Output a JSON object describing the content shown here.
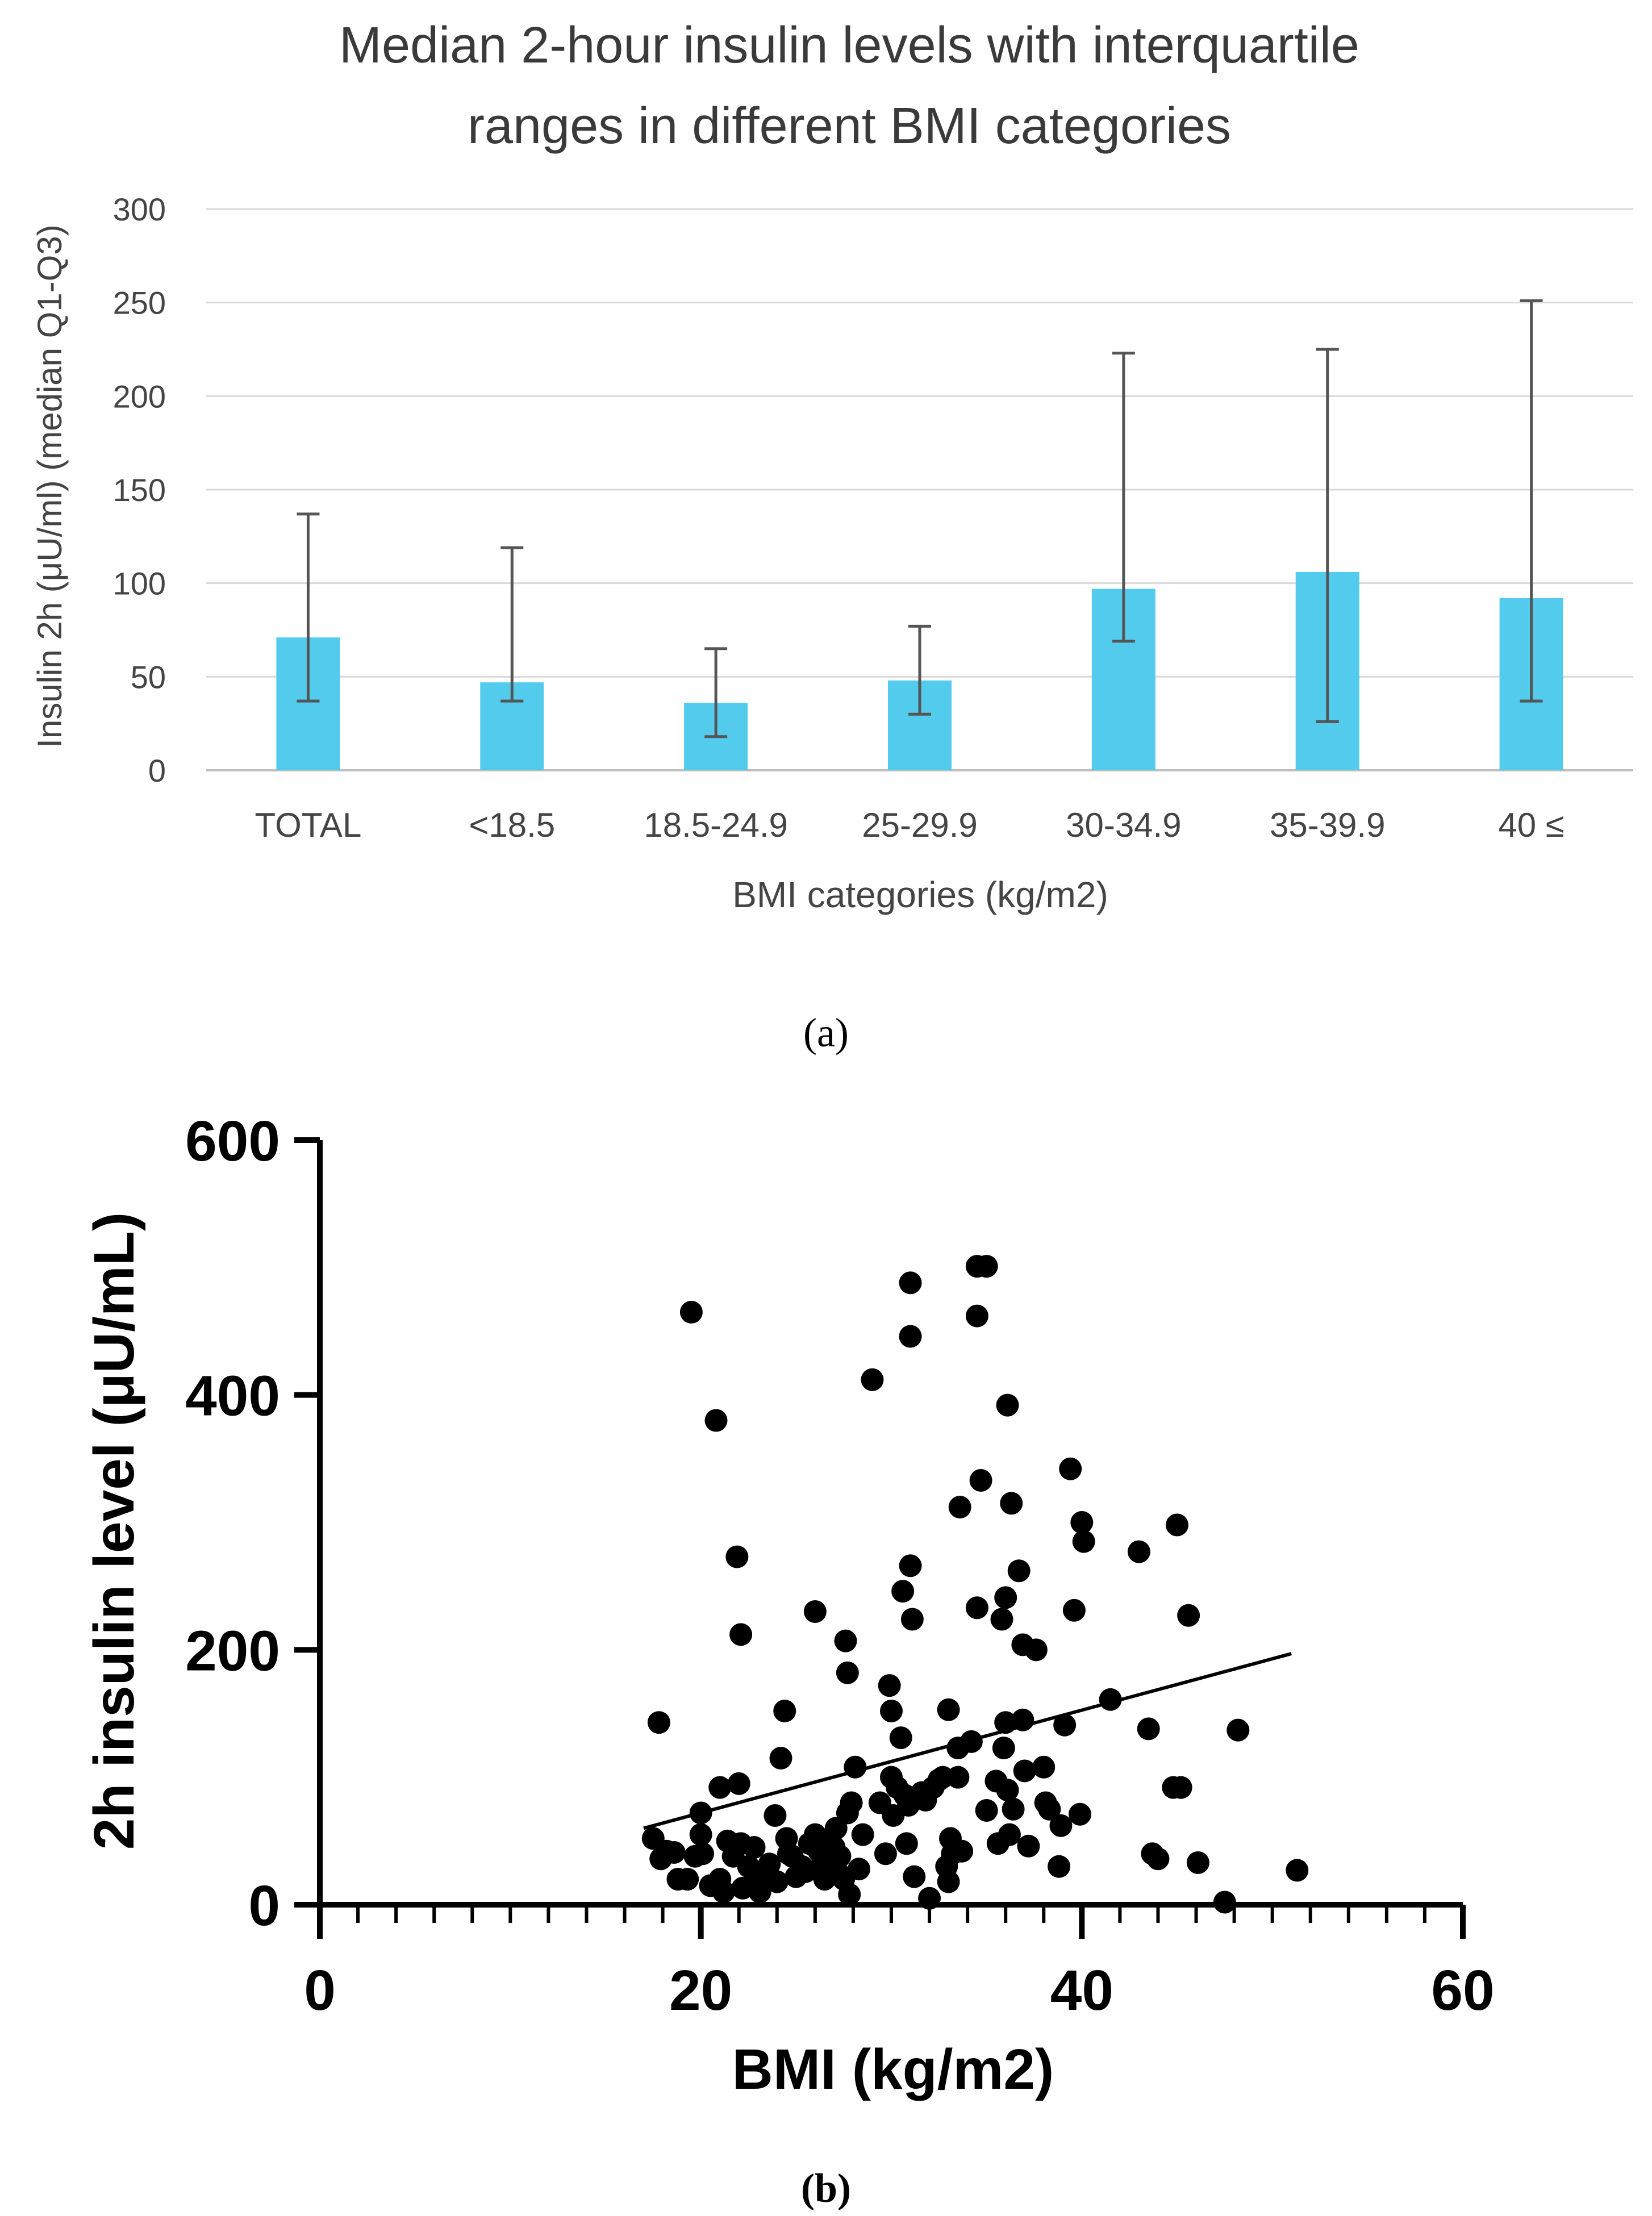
{
  "chart_data": [
    {
      "type": "bar",
      "panel_label": "(a)",
      "title_lines": [
        "Median 2-hour insulin levels with interquartile",
        "ranges in different BMI categories"
      ],
      "xlabel": "BMI categories (kg/m2)",
      "ylabel": "Insulin 2h (μU/ml) (median Q1-Q3)",
      "ylim": [
        0,
        300
      ],
      "yticks": [
        0,
        50,
        100,
        150,
        200,
        250,
        300
      ],
      "grid": true,
      "categories": [
        "TOTAL",
        "<18.5",
        "18.5-24.9",
        "25-29.9",
        "30-34.9",
        "35-39.9",
        "40 ≤"
      ],
      "values": [
        71,
        47,
        36,
        48,
        97,
        106,
        92
      ],
      "q1": [
        37,
        37,
        18,
        30,
        69,
        26,
        37
      ],
      "q3": [
        137,
        119,
        65,
        77,
        223,
        225,
        251
      ],
      "bar_color": "#52CBEC",
      "error_color": "#555555"
    },
    {
      "type": "scatter",
      "panel_label": "(b)",
      "xlabel": "BMI (kg/m2)",
      "ylabel": "2h insulin level (μU/mL)",
      "xlim": [
        0,
        60
      ],
      "ylim": [
        0,
        600
      ],
      "xticks": [
        0,
        20,
        40,
        60
      ],
      "yticks": [
        0,
        200,
        400,
        600
      ],
      "trendline": {
        "x": [
          17,
          51
        ],
        "y": [
          60,
          197
        ]
      },
      "points": [
        [
          17.5,
          52
        ],
        [
          17.8,
          143
        ],
        [
          17.9,
          36
        ],
        [
          18.2,
          42
        ],
        [
          18.6,
          41
        ],
        [
          18.8,
          20
        ],
        [
          19.3,
          20
        ],
        [
          19.5,
          465
        ],
        [
          19.7,
          38
        ],
        [
          20.0,
          72
        ],
        [
          20.0,
          55
        ],
        [
          20.1,
          40
        ],
        [
          20.5,
          15
        ],
        [
          20.8,
          380
        ],
        [
          21.0,
          92
        ],
        [
          21.0,
          20
        ],
        [
          21.2,
          10
        ],
        [
          21.4,
          50
        ],
        [
          21.7,
          38
        ],
        [
          21.9,
          273
        ],
        [
          22.0,
          95
        ],
        [
          22.1,
          212
        ],
        [
          22.1,
          48
        ],
        [
          22.2,
          13
        ],
        [
          22.5,
          30
        ],
        [
          22.8,
          45
        ],
        [
          23.0,
          20
        ],
        [
          23.1,
          10
        ],
        [
          23.4,
          25
        ],
        [
          23.6,
          32
        ],
        [
          23.9,
          70
        ],
        [
          24.0,
          18
        ],
        [
          24.2,
          115
        ],
        [
          24.4,
          152
        ],
        [
          24.5,
          52
        ],
        [
          24.6,
          40
        ],
        [
          24.8,
          38
        ],
        [
          25.0,
          22
        ],
        [
          25.3,
          30
        ],
        [
          25.5,
          26
        ],
        [
          25.7,
          48
        ],
        [
          26.0,
          230
        ],
        [
          26.0,
          55
        ],
        [
          26.2,
          42
        ],
        [
          26.4,
          33
        ],
        [
          26.5,
          20
        ],
        [
          26.8,
          52
        ],
        [
          27.0,
          45
        ],
        [
          27.1,
          60
        ],
        [
          27.2,
          25
        ],
        [
          27.3,
          38
        ],
        [
          27.5,
          20
        ],
        [
          27.6,
          207
        ],
        [
          27.7,
          182
        ],
        [
          27.7,
          72
        ],
        [
          27.8,
          8
        ],
        [
          27.9,
          80
        ],
        [
          28.1,
          108
        ],
        [
          28.3,
          28
        ],
        [
          28.5,
          55
        ],
        [
          29.0,
          412
        ],
        [
          29.4,
          80
        ],
        [
          29.7,
          40
        ],
        [
          29.9,
          172
        ],
        [
          30.0,
          152
        ],
        [
          30.0,
          100
        ],
        [
          30.1,
          70
        ],
        [
          30.3,
          92
        ],
        [
          30.5,
          131
        ],
        [
          30.6,
          246
        ],
        [
          30.7,
          86
        ],
        [
          30.8,
          48
        ],
        [
          30.9,
          78
        ],
        [
          31.0,
          266
        ],
        [
          31.0,
          488
        ],
        [
          31.0,
          446
        ],
        [
          31.1,
          224
        ],
        [
          31.2,
          22
        ],
        [
          31.6,
          88
        ],
        [
          31.8,
          82
        ],
        [
          32.0,
          5
        ],
        [
          32.2,
          92
        ],
        [
          32.5,
          98
        ],
        [
          32.7,
          100
        ],
        [
          32.9,
          30
        ],
        [
          33.0,
          153
        ],
        [
          33.0,
          18
        ],
        [
          33.1,
          52
        ],
        [
          33.2,
          40
        ],
        [
          33.5,
          100
        ],
        [
          33.5,
          123
        ],
        [
          33.6,
          312
        ],
        [
          33.7,
          42
        ],
        [
          34.2,
          128
        ],
        [
          34.5,
          501
        ],
        [
          34.5,
          462
        ],
        [
          34.5,
          233
        ],
        [
          34.7,
          333
        ],
        [
          35.0,
          501
        ],
        [
          35.0,
          74
        ],
        [
          35.5,
          97
        ],
        [
          35.6,
          48
        ],
        [
          35.8,
          224
        ],
        [
          35.9,
          123
        ],
        [
          36.0,
          241
        ],
        [
          36.0,
          143
        ],
        [
          36.1,
          392
        ],
        [
          36.1,
          90
        ],
        [
          36.2,
          55
        ],
        [
          36.3,
          315
        ],
        [
          36.4,
          75
        ],
        [
          36.7,
          262
        ],
        [
          36.9,
          204
        ],
        [
          36.9,
          145
        ],
        [
          37.0,
          105
        ],
        [
          37.2,
          46
        ],
        [
          37.6,
          200
        ],
        [
          38.0,
          108
        ],
        [
          38.1,
          80
        ],
        [
          38.3,
          75
        ],
        [
          38.8,
          30
        ],
        [
          38.9,
          62
        ],
        [
          39.1,
          141
        ],
        [
          39.4,
          342
        ],
        [
          39.6,
          231
        ],
        [
          39.9,
          71
        ],
        [
          40.0,
          300
        ],
        [
          40.1,
          285
        ],
        [
          41.5,
          161
        ],
        [
          43.0,
          277
        ],
        [
          43.5,
          138
        ],
        [
          43.7,
          40
        ],
        [
          44.0,
          36
        ],
        [
          44.8,
          92
        ],
        [
          45.0,
          298
        ],
        [
          45.2,
          92
        ],
        [
          45.6,
          227
        ],
        [
          46.1,
          33
        ],
        [
          47.5,
          2
        ],
        [
          48.2,
          137
        ],
        [
          51.3,
          27
        ]
      ]
    }
  ]
}
